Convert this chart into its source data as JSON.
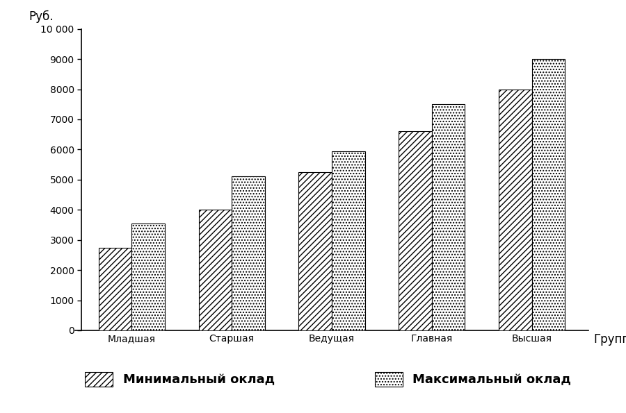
{
  "categories": [
    "Младшая",
    "Старшая",
    "Ведущая",
    "Главная",
    "Высшая"
  ],
  "min_values": [
    2750,
    4000,
    5250,
    6600,
    8000
  ],
  "max_values": [
    3550,
    5100,
    5950,
    7500,
    9000
  ],
  "ylabel_top": "Руб.",
  "xlabel": "Группа",
  "ylim": [
    0,
    10000
  ],
  "yticks": [
    0,
    1000,
    2000,
    3000,
    4000,
    5000,
    6000,
    7000,
    8000,
    9000,
    10000
  ],
  "ytick_labels": [
    "0",
    "1000",
    "2000",
    "3000",
    "4000",
    "5000",
    "6000",
    "7000",
    "8000",
    "9000",
    "10 000"
  ],
  "legend_min": "Минимальный оклад",
  "legend_max": "Максимальный оклад",
  "bar_width": 0.33,
  "background_color": "#ffffff",
  "hatch_min": "////",
  "hatch_max": "....",
  "bar_color": "#ffffff",
  "edge_color": "#000000",
  "fontsize_ticks": 12,
  "fontsize_labels": 12
}
